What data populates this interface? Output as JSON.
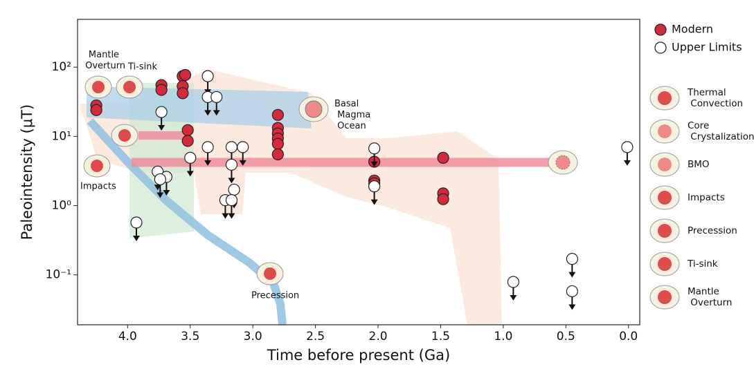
{
  "chart_data": {
    "type": "scatter",
    "xlabel": "Time before present (Ga)",
    "ylabel": "Paleointensity (μT)",
    "xlim": [
      4.4,
      -0.09
    ],
    "ylim": [
      0.019,
      490
    ],
    "log_y": true,
    "xticks": [
      {
        "value": 4,
        "label": "4.0"
      },
      {
        "value": 3.5,
        "label": "3.5"
      },
      {
        "value": 3,
        "label": "3.0"
      },
      {
        "value": 2.5,
        "label": "2.5"
      },
      {
        "value": 2,
        "label": "2.0"
      },
      {
        "value": 1.5,
        "label": "1.5"
      },
      {
        "value": 1,
        "label": "1.0"
      },
      {
        "value": 0.5,
        "label": "0.5"
      },
      {
        "value": 0,
        "label": "0.0"
      }
    ],
    "yticks": [
      {
        "value": 0.1,
        "label": "10⁻¹"
      },
      {
        "value": 1,
        "label": "10⁰"
      },
      {
        "value": 10,
        "label": "10¹"
      },
      {
        "value": 100,
        "label": "10²"
      }
    ],
    "legend": "upper right",
    "series": [
      {
        "name": "Modern",
        "color": "#d42a3c",
        "x": [
          4.25,
          4.25,
          3.73,
          3.73,
          3.56,
          3.56,
          3.56,
          3.54,
          3.52,
          3.52,
          2.8,
          2.8,
          2.8,
          2.8,
          2.8,
          2.8,
          2.03,
          2.03,
          2.03,
          1.48,
          1.48,
          1.48
        ],
        "values": [
          28,
          24,
          55,
          47,
          74,
          53,
          42,
          77,
          12.3,
          8.6,
          20.4,
          13.2,
          11,
          9.3,
          7.8,
          5.5,
          4.3,
          2.3,
          2.1,
          4.9,
          1.5,
          1.24
        ]
      },
      {
        "name": "Upper Limits",
        "color": "#ffffff",
        "x": [
          3.36,
          3.36,
          3.29,
          3.73,
          3.36,
          3.5,
          3.17,
          3.08,
          3.17,
          3.15,
          3.22,
          3.17,
          3.76,
          3.69,
          3.74,
          3.93,
          2.03,
          2.03,
          0.92,
          0.45,
          0.45,
          0.01
        ],
        "values": [
          74,
          37,
          37,
          22.5,
          7,
          4.9,
          7,
          7,
          3.9,
          1.7,
          1.2,
          1.2,
          3.1,
          2.6,
          2.4,
          0.57,
          6.7,
          1.9,
          0.079,
          0.17,
          0.058,
          7
        ]
      }
    ],
    "annotations": [
      "Mantle Overturn",
      "Ti-sink",
      "Basal Magma Ocean",
      "Impacts",
      "Precession"
    ],
    "mechanism_legend": [
      "Thermal Convection",
      "Core Crystalization",
      "BMO",
      "Impacts",
      "Precession",
      "Ti-sink",
      "Mantle Overturn"
    ]
  }
}
